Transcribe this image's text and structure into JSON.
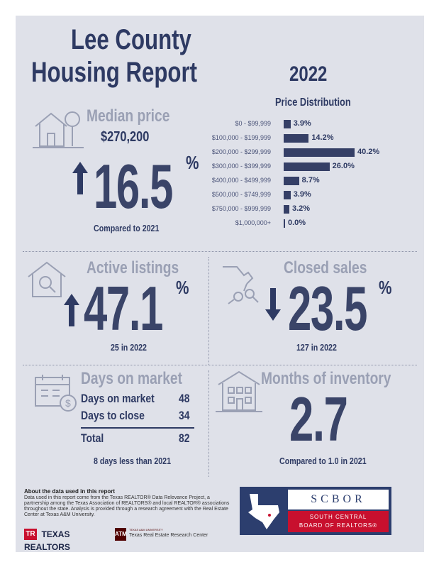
{
  "title": {
    "line1": "Lee County",
    "line2": "Housing Report"
  },
  "year": "2022",
  "median_price": {
    "heading": "Median price",
    "value": "$270,200",
    "change": "16.5",
    "percent": "%",
    "note": "Compared to 2021",
    "icon": "house-tree-icon"
  },
  "price_distribution": {
    "title": "Price Distribution",
    "rows": [
      {
        "label": "$0 - $99,999",
        "value": 3.9,
        "text": "3.9%"
      },
      {
        "label": "$100,000 - $199,999",
        "value": 14.2,
        "text": "14.2%"
      },
      {
        "label": "$200,000 - $299,999",
        "value": 40.2,
        "text": "40.2%"
      },
      {
        "label": "$300,000 - $399,999",
        "value": 26.0,
        "text": "26.0%"
      },
      {
        "label": "$400,000 - $499,999",
        "value": 8.7,
        "text": "8.7%"
      },
      {
        "label": "$500,000 - $749,999",
        "value": 3.9,
        "text": "3.9%"
      },
      {
        "label": "$750,000 - $999,999",
        "value": 3.2,
        "text": "3.2%"
      },
      {
        "label": "$1,000,000+",
        "value": 0.0,
        "text": "0.0%"
      }
    ]
  },
  "active_listings": {
    "heading": "Active listings",
    "change": "47.1",
    "percent": "%",
    "note": "25 in 2022",
    "icon": "house-magnifier-icon"
  },
  "closed_sales": {
    "heading": "Closed sales",
    "change": "23.5",
    "percent": "%",
    "note": "127 in 2022",
    "icon": "hand-keys-icon"
  },
  "days_on_market": {
    "heading": "Days on market",
    "rows": [
      {
        "label": "Days on market",
        "value": "48"
      },
      {
        "label": "Days to close",
        "value": "34"
      }
    ],
    "total_label": "Total",
    "total_value": "82",
    "note": "8 days less than 2021",
    "icon": "calendar-dollar-icon"
  },
  "months_inventory": {
    "heading": "Months of inventory",
    "value": "2.7",
    "note": "Compared to 1.0 in 2021",
    "icon": "building-icon"
  },
  "about": {
    "heading": "About the data used in this report",
    "body": "Data used in this report come from the Texas REALTOR® Data Relevance Project, a partnership among the Texas Association of REALTORS® and local REALTOR® associations throughout the state. Analysis is provided through a research agreement with the Real Estate Center at Texas A&M University."
  },
  "logos": {
    "texas_realtors": "TEXAS REALTORS",
    "tamu_small": "TEXAS A&M UNIVERSITY",
    "tamu_center": "Texas Real Estate Research Center",
    "scbor_abbr": "SCBOR",
    "scbor_line1": "SOUTH CENTRAL",
    "scbor_line2": "BOARD OF REALTORS®"
  }
}
